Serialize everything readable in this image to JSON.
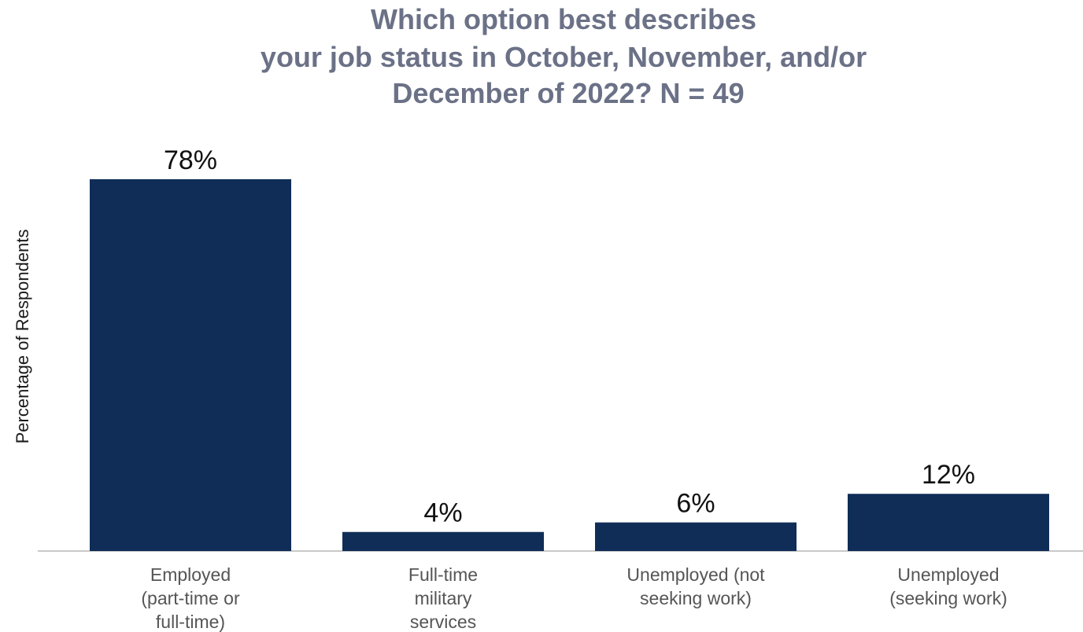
{
  "chart_data": {
    "type": "bar",
    "title_lines": [
      "Which option best describes",
      "your job status in October, November, and/or",
      "December of 2022?   N = 49"
    ],
    "ylabel": "Percentage of Respondents",
    "xlabel": "",
    "categories": [
      [
        "Employed",
        "(part-time or",
        "full-time)"
      ],
      [
        "Full-time",
        "military",
        "services"
      ],
      [
        "Unemployed (not",
        "seeking work)"
      ],
      [
        "Unemployed",
        "(seeking work)"
      ]
    ],
    "values": [
      78,
      4,
      6,
      12
    ],
    "data_labels": [
      "78%",
      "4%",
      "6%",
      "12%"
    ],
    "value_unit": "%",
    "ylim": [
      0,
      78
    ],
    "grid": false,
    "legend": "none",
    "bar_color": "#0f2d57",
    "title_color": "#6b7186"
  }
}
